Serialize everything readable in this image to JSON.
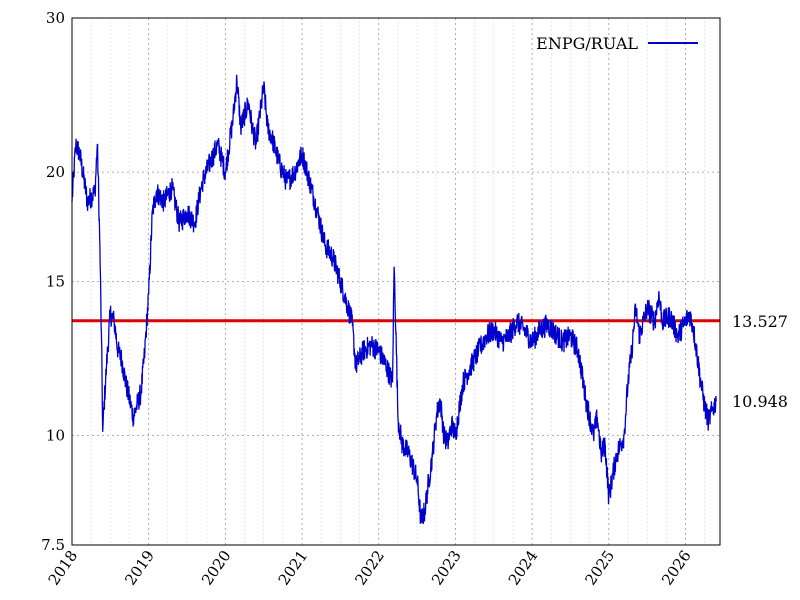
{
  "chart_data": {
    "type": "line",
    "yscale": "log",
    "ylim": [
      7.5,
      30
    ],
    "xlim": [
      2018.0,
      2026.45
    ],
    "grid": true,
    "yticks": [
      {
        "value": 30,
        "label": "30"
      },
      {
        "value": 20,
        "label": "20"
      },
      {
        "value": 15,
        "label": "15"
      },
      {
        "value": 10,
        "label": "10"
      },
      {
        "value": 7.5,
        "label": "7.5"
      }
    ],
    "xticks": [
      {
        "value": 2018,
        "label": "2018"
      },
      {
        "value": 2019,
        "label": "2019"
      },
      {
        "value": 2020,
        "label": "2020"
      },
      {
        "value": 2021,
        "label": "2021"
      },
      {
        "value": 2022,
        "label": "2022"
      },
      {
        "value": 2023,
        "label": "2023"
      },
      {
        "value": 2024,
        "label": "2024"
      },
      {
        "value": 2025,
        "label": "2025"
      },
      {
        "value": 2026,
        "label": "2026"
      }
    ],
    "legend": {
      "position": "top-right"
    },
    "series": [
      {
        "name": "ENPG/RUAL",
        "color": "#0000cc",
        "x": [
          2018.0,
          2018.05,
          2018.1,
          2018.2,
          2018.3,
          2018.33,
          2018.36,
          2018.4,
          2018.45,
          2018.5,
          2018.55,
          2018.6,
          2018.65,
          2018.7,
          2018.8,
          2018.9,
          2018.95,
          2019.0,
          2019.05,
          2019.1,
          2019.2,
          2019.3,
          2019.4,
          2019.5,
          2019.6,
          2019.7,
          2019.8,
          2019.9,
          2020.0,
          2020.1,
          2020.15,
          2020.2,
          2020.3,
          2020.35,
          2020.4,
          2020.5,
          2020.55,
          2020.6,
          2020.7,
          2020.8,
          2020.9,
          2021.0,
          2021.1,
          2021.2,
          2021.3,
          2021.4,
          2021.5,
          2021.6,
          2021.65,
          2021.7,
          2021.8,
          2021.9,
          2022.0,
          2022.1,
          2022.18,
          2022.2,
          2022.25,
          2022.3,
          2022.4,
          2022.5,
          2022.55,
          2022.6,
          2022.7,
          2022.75,
          2022.8,
          2022.85,
          2022.9,
          2022.95,
          2023.0,
          2023.1,
          2023.2,
          2023.3,
          2023.4,
          2023.5,
          2023.6,
          2023.7,
          2023.8,
          2023.9,
          2024.0,
          2024.1,
          2024.2,
          2024.3,
          2024.4,
          2024.5,
          2024.6,
          2024.7,
          2024.8,
          2024.85,
          2024.9,
          2024.95,
          2025.0,
          2025.1,
          2025.2,
          2025.25,
          2025.3,
          2025.35,
          2025.4,
          2025.5,
          2025.6,
          2025.65,
          2025.7,
          2025.8,
          2025.9,
          2026.0,
          2026.05,
          2026.1,
          2026.2,
          2026.25,
          2026.3,
          2026.35,
          2026.4
        ],
        "y": [
          18.5,
          21.5,
          21.0,
          18.5,
          19.0,
          21.5,
          17.0,
          10.1,
          12.0,
          13.8,
          13.5,
          12.5,
          12.2,
          11.5,
          10.5,
          11.2,
          12.5,
          14.5,
          18.0,
          19.0,
          18.5,
          19.2,
          17.5,
          18.0,
          17.5,
          19.5,
          20.5,
          21.5,
          20.0,
          23.0,
          25.5,
          22.5,
          24.0,
          22.5,
          21.5,
          25.0,
          22.5,
          22.0,
          20.5,
          19.5,
          20.0,
          21.0,
          19.5,
          18.0,
          16.5,
          16.0,
          15.0,
          14.0,
          13.5,
          12.0,
          12.5,
          12.7,
          12.5,
          12.0,
          11.5,
          15.6,
          10.5,
          9.8,
          9.5,
          8.9,
          8.0,
          8.2,
          9.5,
          10.5,
          11.0,
          10.0,
          9.8,
          10.3,
          10.0,
          11.5,
          12.0,
          12.5,
          13.0,
          13.2,
          12.8,
          13.0,
          13.5,
          13.2,
          12.8,
          13.2,
          13.4,
          13.1,
          12.8,
          13.0,
          12.5,
          11.0,
          10.0,
          10.5,
          9.5,
          9.8,
          8.5,
          9.5,
          10.0,
          11.5,
          12.5,
          14.0,
          13.0,
          14.0,
          13.5,
          14.5,
          13.5,
          13.7,
          13.0,
          13.5,
          13.8,
          13.3,
          11.5,
          10.8,
          10.4,
          10.7,
          10.95
        ]
      }
    ],
    "reference_line": {
      "value": 13.527,
      "label": "13.527",
      "color": "#e00000"
    },
    "last_value_label": {
      "value": 10.948,
      "label": "10.948"
    }
  }
}
